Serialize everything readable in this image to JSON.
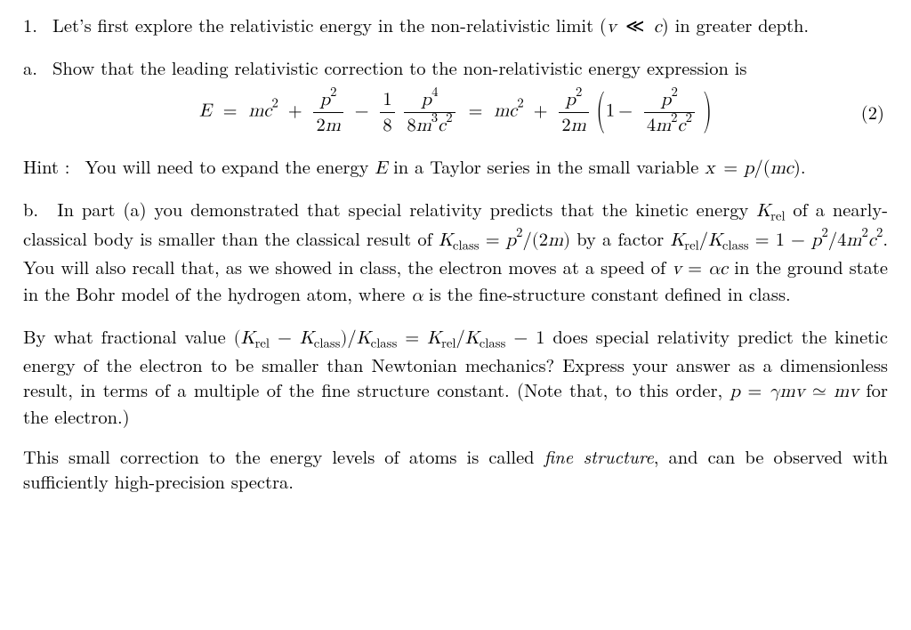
{
  "global": {
    "page_background": "#ffffff",
    "text_color": "#000000",
    "base_fontsize_pt": 15,
    "font_family": "Computer Modern / Latin Modern (serif)",
    "line_height": 1.35,
    "text_align": "justify"
  },
  "problem": {
    "number": "1.",
    "intro": "Let's first explore the relativistic energy in the non-relativistic limit (v ≪ c) in greater depth."
  },
  "part_a": {
    "label": "a.",
    "prompt": "Show that the leading relativistic correction to the non-relativistic energy expression is",
    "hint_prefix": "Hint :",
    "hint_text": "You will need to expand the energy E in a Taylor series in the small variable x = p/(mc)."
  },
  "equation": {
    "tag": "(2)",
    "lhs_symbol": "E",
    "terms": {
      "rest_mass": "mc²",
      "kinetic_classical": {
        "num": "p²",
        "den": "2m"
      },
      "correction": {
        "coef_num": "1",
        "coef_den": "8",
        "num": "p⁴",
        "den": "8m³c²"
      },
      "factored": {
        "prefactor_one": "1",
        "minus_num": "p²",
        "minus_den": "4m²c²"
      }
    },
    "display": {
      "centered": true,
      "eqnum_align": "right"
    }
  },
  "part_b": {
    "label": "b.",
    "para1_a": "In part (a) you demonstrated that special relativity predicts that the kinetic energy ",
    "K_rel": "K",
    "K_rel_sub": "rel",
    "para1_b": " of a nearly-classical body is smaller than the classical result of ",
    "K_class": "K",
    "K_class_sub": "class",
    "eq_Kclass": " = p²/(2m)",
    "para1_c": " by a factor ",
    "ratio_text": " = 1 − p²/4m²c².",
    "para1_d": " You will also recall that, as we showed in class, the electron moves at a speed of v = αc in the ground state in the Bohr model of the hydrogen atom, where α is the fine-structure constant defined in class.",
    "para2_a": "By what fractional value (",
    "frac_expr_mid": " − ",
    "frac_expr_close": ")/",
    "frac_expr_rhs": " − 1",
    "para2_b": " does special relativity predict the kinetic energy of the electron to be smaller than Newtonian mechanics? Express your answer as a dimensionless result, in terms of a multiple of the fine structure constant. (Note that, to this order, p = γmv ≃ mv for the electron.)",
    "para3": "This small correction to the energy levels of atoms is called ",
    "fine_structure_term": "fine structure",
    "para3_b": ", and can be observed with sufficiently high-precision spectra."
  }
}
